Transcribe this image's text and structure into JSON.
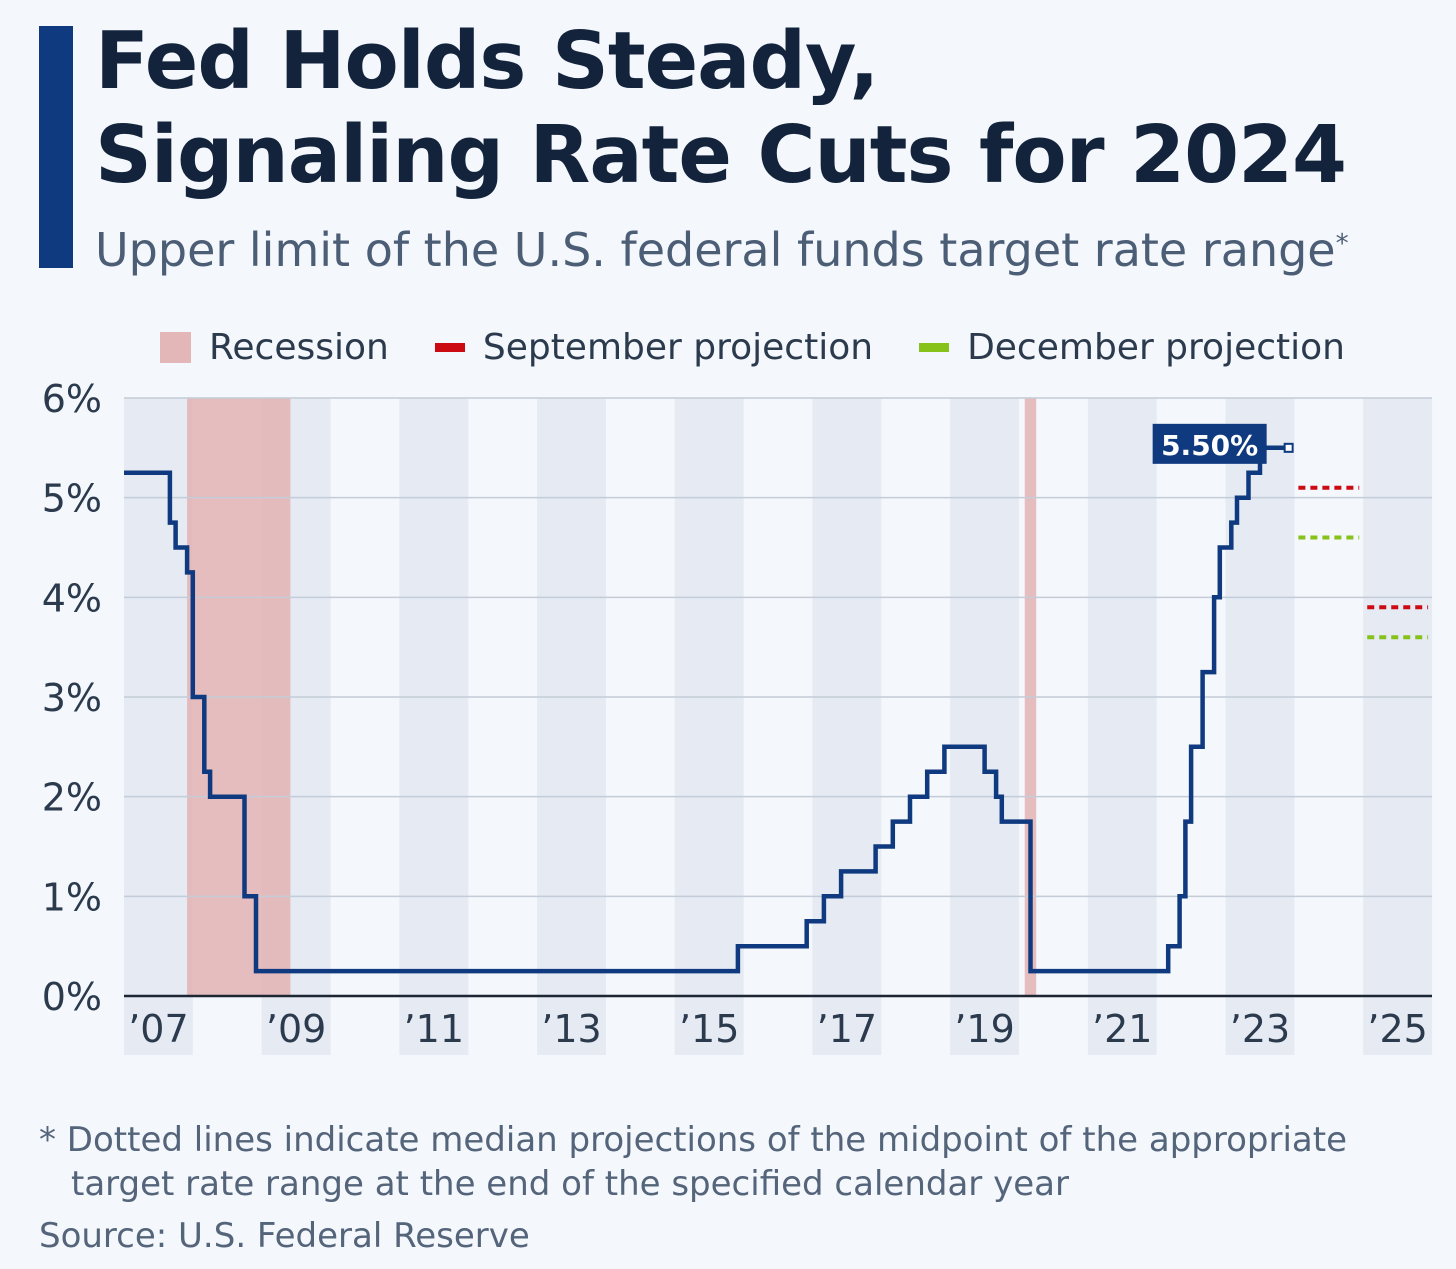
{
  "title_line1": "Fed Holds Steady,",
  "title_line2": "Signaling Rate Cuts for 2024",
  "subtitle": "Upper limit of the U.S. federal funds target rate range",
  "subtitle_marker": "*",
  "legend": {
    "recession": "Recession",
    "september": "September projection",
    "december": "December projection"
  },
  "colors": {
    "series": "#0f3a7f",
    "recession": "#e3b6b7",
    "september": "#cc0a12",
    "december": "#86c21a",
    "callout": "#0f3a7f",
    "grid": "#c4ccd8",
    "band": "#e5eaf3"
  },
  "footnote": "* Dotted lines indicate median projections of the midpoint of the appropriate target rate range at the end of the specified calendar year",
  "source": "Source: U.S. Federal Reserve",
  "chart_data": {
    "type": "line",
    "ylabel": "",
    "xlabel": "",
    "ylim": [
      0,
      6
    ],
    "xlim": [
      "2007-01-01",
      "2025-12-31"
    ],
    "y_ticks": [
      {
        "value": 0,
        "label": "0%"
      },
      {
        "value": 1,
        "label": "1%"
      },
      {
        "value": 2,
        "label": "2%"
      },
      {
        "value": 3,
        "label": "3%"
      },
      {
        "value": 4,
        "label": "4%"
      },
      {
        "value": 5,
        "label": "5%"
      },
      {
        "value": 6,
        "label": "6%"
      }
    ],
    "x_ticks": [
      {
        "year": 2007,
        "label": "’07"
      },
      {
        "year": 2009,
        "label": "’09"
      },
      {
        "year": 2011,
        "label": "’11"
      },
      {
        "year": 2013,
        "label": "’13"
      },
      {
        "year": 2015,
        "label": "’15"
      },
      {
        "year": 2017,
        "label": "’17"
      },
      {
        "year": 2019,
        "label": "’19"
      },
      {
        "year": 2021,
        "label": "’21"
      },
      {
        "year": 2023,
        "label": "’23"
      },
      {
        "year": 2025,
        "label": "’25"
      }
    ],
    "grid": true,
    "legend_position": "top",
    "recessions": [
      {
        "start": "2007-12",
        "end": "2009-06"
      },
      {
        "start": "2020-02",
        "end": "2020-04"
      }
    ],
    "series": [
      {
        "values": [
          {
            "date": "2007-01",
            "rate": 5.25
          },
          {
            "date": "2007-09",
            "rate": 4.75
          },
          {
            "date": "2007-10",
            "rate": 4.5
          },
          {
            "date": "2007-12",
            "rate": 4.25
          },
          {
            "date": "2008-01",
            "rate": 3.5
          },
          {
            "date": "2008-01",
            "rate": 3.0
          },
          {
            "date": "2008-03",
            "rate": 2.25
          },
          {
            "date": "2008-04",
            "rate": 2.0
          },
          {
            "date": "2008-10",
            "rate": 1.5
          },
          {
            "date": "2008-10",
            "rate": 1.0
          },
          {
            "date": "2008-12",
            "rate": 0.25
          },
          {
            "date": "2015-12",
            "rate": 0.5
          },
          {
            "date": "2016-12",
            "rate": 0.75
          },
          {
            "date": "2017-03",
            "rate": 1.0
          },
          {
            "date": "2017-06",
            "rate": 1.25
          },
          {
            "date": "2017-12",
            "rate": 1.5
          },
          {
            "date": "2018-03",
            "rate": 1.75
          },
          {
            "date": "2018-06",
            "rate": 2.0
          },
          {
            "date": "2018-09",
            "rate": 2.25
          },
          {
            "date": "2018-12",
            "rate": 2.5
          },
          {
            "date": "2019-07",
            "rate": 2.25
          },
          {
            "date": "2019-09",
            "rate": 2.0
          },
          {
            "date": "2019-10",
            "rate": 1.75
          },
          {
            "date": "2020-03",
            "rate": 1.25
          },
          {
            "date": "2020-03",
            "rate": 0.25
          },
          {
            "date": "2022-03",
            "rate": 0.5
          },
          {
            "date": "2022-05",
            "rate": 1.0
          },
          {
            "date": "2022-06",
            "rate": 1.75
          },
          {
            "date": "2022-07",
            "rate": 2.5
          },
          {
            "date": "2022-09",
            "rate": 3.25
          },
          {
            "date": "2022-11",
            "rate": 4.0
          },
          {
            "date": "2022-12",
            "rate": 4.5
          },
          {
            "date": "2023-02",
            "rate": 4.75
          },
          {
            "date": "2023-03",
            "rate": 5.0
          },
          {
            "date": "2023-05",
            "rate": 5.25
          },
          {
            "date": "2023-07",
            "rate": 5.5
          },
          {
            "date": "2023-12",
            "rate": 5.5
          }
        ]
      }
    ],
    "projections": [
      {
        "name": "September projection",
        "year": 2024,
        "rate": 5.1
      },
      {
        "name": "September projection",
        "year": 2025,
        "rate": 3.9
      },
      {
        "name": "December projection",
        "year": 2024,
        "rate": 4.6
      },
      {
        "name": "December projection",
        "year": 2025,
        "rate": 3.6
      }
    ],
    "annotations": [
      {
        "date": "2023-12",
        "rate": 5.5,
        "label": "5.50%"
      }
    ]
  }
}
